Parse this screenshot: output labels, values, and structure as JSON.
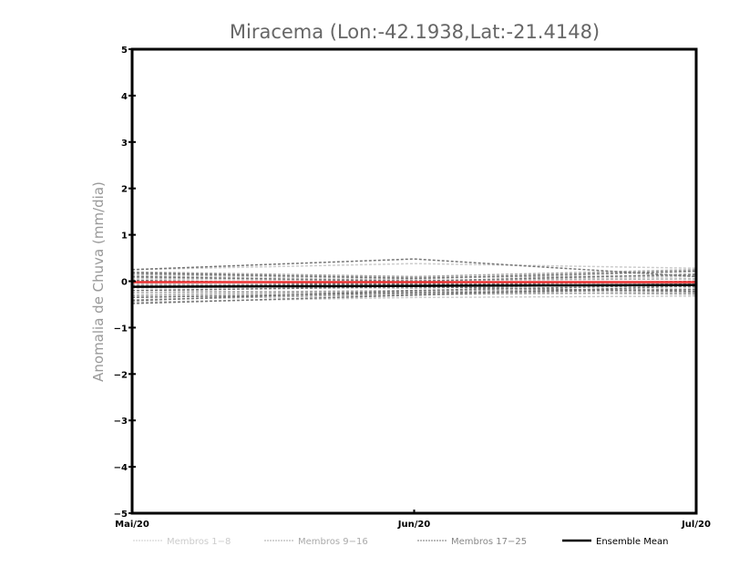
{
  "chart_data": {
    "type": "line",
    "title": "Miracema (Lon:-42.1938,Lat:-21.4148)",
    "xlabel": "",
    "ylabel": "Anomalia de Chuva (mm/dia)",
    "categories": [
      "Mai/20",
      "Jun/20",
      "Jul/20"
    ],
    "ylim": [
      -5,
      5
    ],
    "yticks": [
      -5,
      -4,
      -3,
      -2,
      -1,
      0,
      1,
      2,
      3,
      4,
      5
    ],
    "grid": false,
    "legend_position": "bottom",
    "legend": [
      {
        "label": "Membros 1-8",
        "color": "#cccccc",
        "style": "dashed"
      },
      {
        "label": "Membros 9-16",
        "color": "#aaaaaa",
        "style": "dashed"
      },
      {
        "label": "Membros 17-25",
        "color": "#777777",
        "style": "dashed"
      },
      {
        "label": "Ensemble Mean",
        "color": "#000000",
        "style": "solid"
      }
    ],
    "series": [
      {
        "group": 0,
        "values": [
          0.25,
          0.38,
          0.28
        ]
      },
      {
        "group": 0,
        "values": [
          0.12,
          0.05,
          0.2
        ]
      },
      {
        "group": 0,
        "values": [
          -0.05,
          -0.12,
          -0.02
        ]
      },
      {
        "group": 0,
        "values": [
          -0.2,
          -0.25,
          -0.15
        ]
      },
      {
        "group": 0,
        "values": [
          -0.32,
          -0.3,
          -0.22
        ]
      },
      {
        "group": 0,
        "values": [
          -0.45,
          -0.35,
          -0.32
        ]
      },
      {
        "group": 0,
        "values": [
          0.05,
          0.0,
          0.1
        ]
      },
      {
        "group": 0,
        "values": [
          -0.15,
          -0.1,
          -0.25
        ]
      },
      {
        "group": 1,
        "values": [
          0.2,
          0.1,
          0.25
        ]
      },
      {
        "group": 1,
        "values": [
          0.08,
          0.02,
          0.05
        ]
      },
      {
        "group": 1,
        "values": [
          -0.08,
          -0.05,
          -0.1
        ]
      },
      {
        "group": 1,
        "values": [
          -0.25,
          -0.2,
          -0.18
        ]
      },
      {
        "group": 1,
        "values": [
          -0.4,
          -0.28,
          -0.25
        ]
      },
      {
        "group": 1,
        "values": [
          -0.1,
          -0.15,
          -0.05
        ]
      },
      {
        "group": 1,
        "values": [
          0.15,
          0.08,
          0.12
        ]
      },
      {
        "group": 1,
        "values": [
          -0.3,
          -0.22,
          -0.28
        ]
      },
      {
        "group": 2,
        "values": [
          0.25,
          0.48,
          0.1
        ]
      },
      {
        "group": 2,
        "values": [
          0.18,
          0.06,
          0.22
        ]
      },
      {
        "group": 2,
        "values": [
          0.1,
          0.0,
          0.15
        ]
      },
      {
        "group": 2,
        "values": [
          -0.12,
          -0.05,
          -0.12
        ]
      },
      {
        "group": 2,
        "values": [
          -0.2,
          -0.12,
          -0.22
        ]
      },
      {
        "group": 2,
        "values": [
          -0.35,
          -0.25,
          -0.18
        ]
      },
      {
        "group": 2,
        "values": [
          -0.48,
          -0.3,
          -0.1
        ]
      },
      {
        "group": 2,
        "values": [
          -0.42,
          -0.2,
          -0.08
        ]
      },
      {
        "group": 2,
        "values": [
          0.02,
          -0.08,
          0.0
        ]
      }
    ],
    "red_line": {
      "color": "#ee3333",
      "values": [
        -0.02,
        -0.02,
        -0.02
      ]
    },
    "ensemble_mean": {
      "color": "#000000",
      "values": [
        -0.12,
        -0.1,
        -0.08
      ]
    }
  }
}
